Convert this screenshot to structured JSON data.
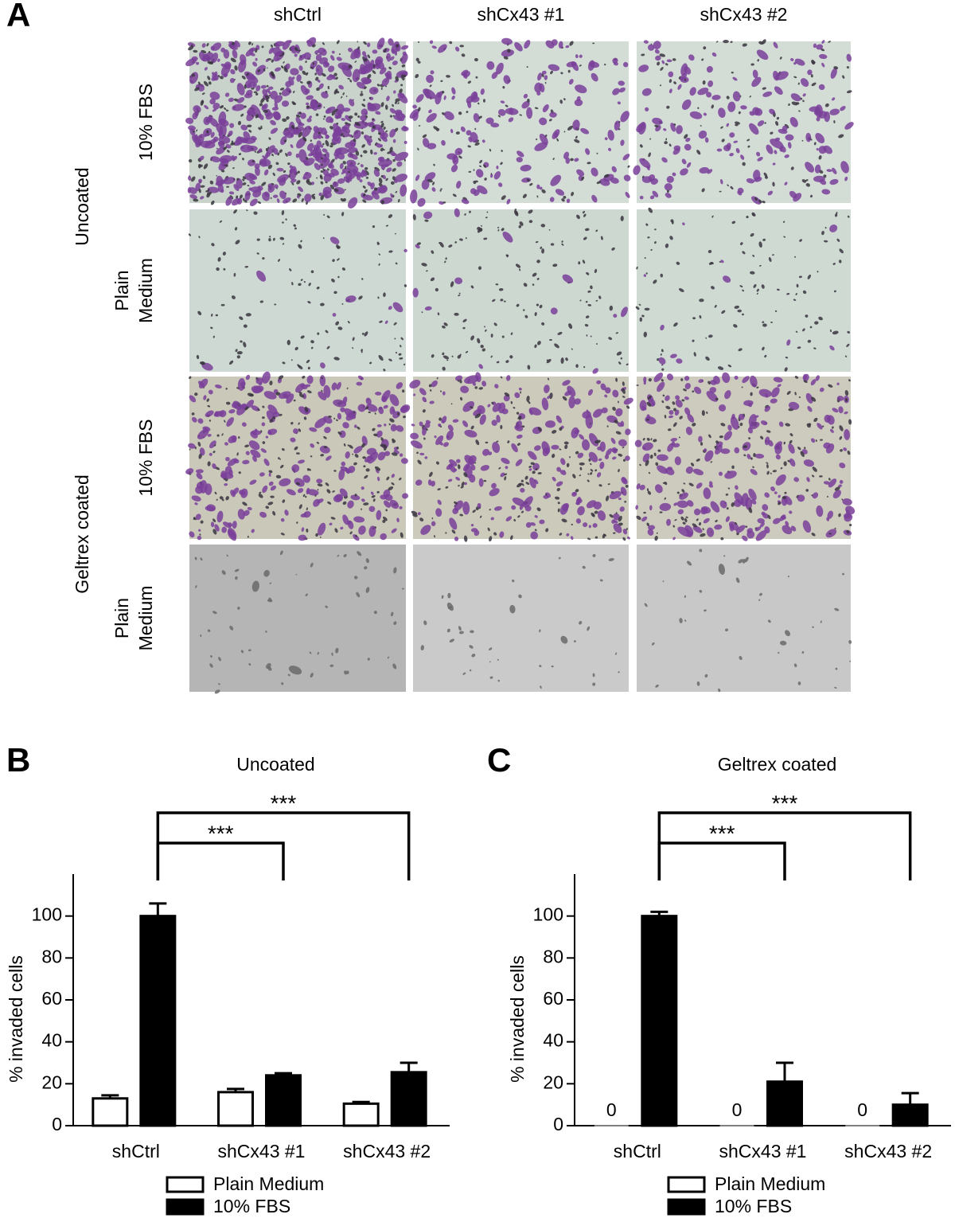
{
  "panel_a": {
    "label": "A",
    "columns": [
      "shCtrl",
      "shCx43 #1",
      "shCx43 #2"
    ],
    "groups": [
      {
        "label": "Uncoated",
        "rows": [
          [
            "10% FBS"
          ],
          [
            "Plain",
            "Medium"
          ]
        ]
      },
      {
        "label": "Geltrex coated",
        "rows": [
          [
            "10% FBS"
          ],
          [
            "Plain",
            "Medium"
          ]
        ]
      }
    ]
  },
  "chart_data": [
    {
      "type": "bar",
      "panel": "B",
      "title": "Uncoated",
      "y_label": "% invaded cells",
      "categories": [
        "shCtrl",
        "shCx43 #1",
        "shCx43 #2"
      ],
      "series": [
        {
          "name": "Plain Medium",
          "color": "#ffffff",
          "values": [
            13,
            16,
            10.5
          ],
          "errors": [
            1.5,
            1.5,
            0.8
          ]
        },
        {
          "name": "10% FBS",
          "color": "#000000",
          "values": [
            100,
            24,
            25.5
          ],
          "errors": [
            6,
            1,
            4.5
          ]
        }
      ],
      "ylim": [
        0,
        120
      ],
      "yticks": [
        0,
        20,
        40,
        60,
        80,
        100
      ],
      "significance": [
        {
          "from": 0,
          "to": 1,
          "label": "***"
        },
        {
          "from": 0,
          "to": 2,
          "label": "***"
        }
      ]
    },
    {
      "type": "bar",
      "panel": "C",
      "title": "Geltrex coated",
      "y_label": "% invaded cells",
      "categories": [
        "shCtrl",
        "shCx43 #1",
        "shCx43 #2"
      ],
      "series": [
        {
          "name": "Plain Medium",
          "color": "#ffffff",
          "values": [
            0,
            0,
            0
          ],
          "value_labels": [
            "0",
            "0",
            "0"
          ]
        },
        {
          "name": "10% FBS",
          "color": "#000000",
          "values": [
            100,
            21,
            10
          ],
          "errors": [
            2,
            9,
            5.5
          ]
        }
      ],
      "ylim": [
        0,
        120
      ],
      "yticks": [
        0,
        20,
        40,
        60,
        80,
        100
      ],
      "significance": [
        {
          "from": 0,
          "to": 1,
          "label": "***"
        },
        {
          "from": 0,
          "to": 2,
          "label": "***"
        }
      ]
    }
  ]
}
